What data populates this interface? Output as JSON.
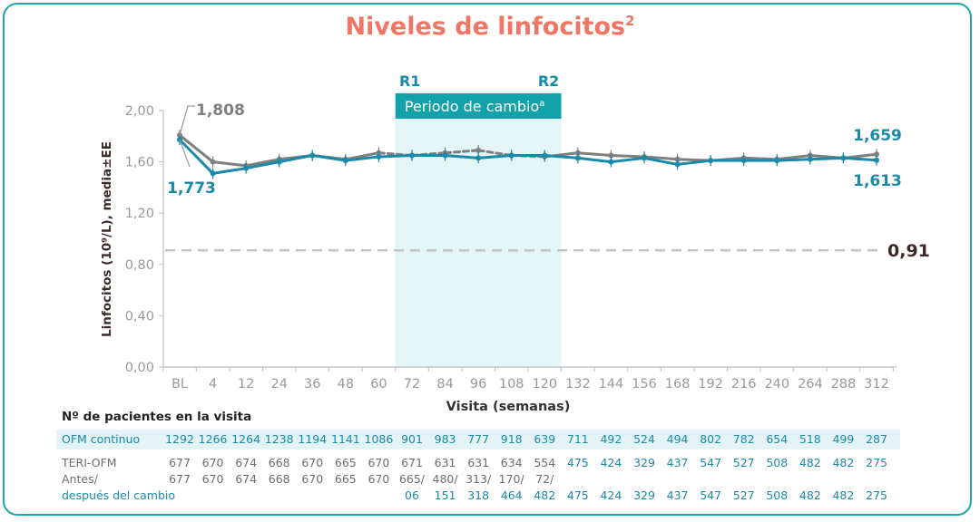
{
  "title": "Niveles de linfocitos",
  "title_sup": "2",
  "colors": {
    "frame": "#1aa8a8",
    "title": "#ef7565",
    "ofm": "#1a8aa8",
    "teri": "#7f7f7f",
    "label_dark": "#3a2a28",
    "band": "#d9f1f1",
    "band_header": "#13a2a9"
  },
  "chart_data": {
    "type": "line",
    "ylabel": "Linfocitos (10⁹/L), media±EE",
    "xlabel": "Visita (semanas)",
    "ylim": [
      0,
      2.0
    ],
    "yticks": [
      "0,00",
      "0,40",
      "0,80",
      "1,20",
      "1,60",
      "2,00"
    ],
    "categories": [
      "BL",
      "4",
      "12",
      "24",
      "36",
      "48",
      "60",
      "72",
      "84",
      "96",
      "108",
      "120",
      "132",
      "144",
      "156",
      "168",
      "192",
      "216",
      "240",
      "264",
      "288",
      "312"
    ],
    "series": [
      {
        "name": "OFM continuo",
        "values": [
          1.773,
          1.51,
          1.55,
          1.6,
          1.65,
          1.61,
          1.64,
          1.65,
          1.65,
          1.63,
          1.65,
          1.65,
          1.63,
          1.6,
          1.63,
          1.58,
          1.61,
          1.61,
          1.61,
          1.62,
          1.63,
          1.613
        ]
      },
      {
        "name": "TERI-OFM",
        "values": [
          1.808,
          1.6,
          1.57,
          1.62,
          1.65,
          1.62,
          1.67,
          1.65,
          1.67,
          1.69,
          1.65,
          1.64,
          1.67,
          1.65,
          1.64,
          1.62,
          1.61,
          1.63,
          1.62,
          1.65,
          1.63,
          1.659
        ]
      }
    ],
    "reference_line": {
      "value": 0.91,
      "label": "0,91"
    },
    "annotations": {
      "ofm_start": "1,773",
      "teri_start": "1,808",
      "end_upper": "1,659",
      "end_lower": "1,613",
      "r1": "R1",
      "r2": "R2",
      "period_label": "Periodo de cambio",
      "period_sup": "a",
      "period_from": "60",
      "period_to": "120"
    },
    "grid": false
  },
  "table": {
    "title": "Nº de pacientes en la visita",
    "rows": [
      {
        "label": "OFM continuo",
        "values": [
          "1292",
          "1266",
          "1264",
          "1238",
          "1194",
          "1141",
          "1086",
          "901",
          "983",
          "777",
          "918",
          "639",
          "711",
          "492",
          "524",
          "494",
          "802",
          "782",
          "654",
          "518",
          "499",
          "287"
        ]
      },
      {
        "label": "TERI-OFM",
        "values": [
          "677",
          "670",
          "674",
          "668",
          "670",
          "665",
          "670",
          "671",
          "631",
          "631",
          "634",
          "554",
          "475",
          "424",
          "329",
          "437",
          "547",
          "527",
          "508",
          "482",
          "482",
          "275"
        ]
      },
      {
        "label": "Antes/",
        "values": [
          "677",
          "670",
          "674",
          "668",
          "670",
          "665",
          "670",
          "665/",
          "480/",
          "313/",
          "170/",
          "72/",
          "",
          "",
          "",
          "",
          "",
          "",
          "",
          "",
          "",
          ""
        ]
      },
      {
        "label": "después del cambio",
        "values": [
          "",
          "",
          "",
          "",
          "",
          "",
          "",
          "06",
          "151",
          "318",
          "464",
          "482",
          "475",
          "424",
          "329",
          "437",
          "547",
          "527",
          "508",
          "482",
          "482",
          "275"
        ]
      }
    ]
  }
}
